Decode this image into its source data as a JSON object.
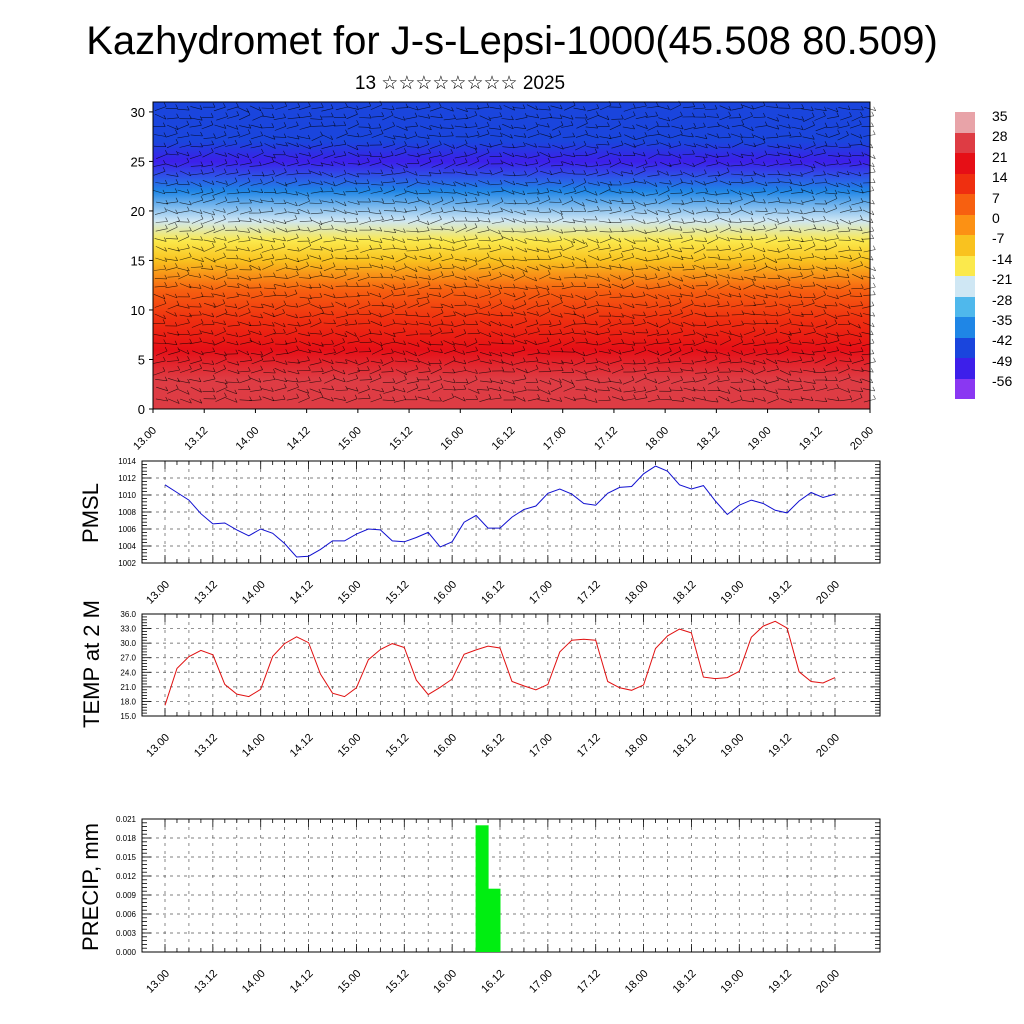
{
  "page": {
    "title": "Kazhydromet for J-s-Lepsi-1000(45.508 80.509)",
    "subtitle": "13 ☆☆☆☆☆☆☆☆ 2025"
  },
  "colorbar": {
    "labels": [
      "35",
      "28",
      "21",
      "14",
      "7",
      "0",
      "-7",
      "-14",
      "-21",
      "-28",
      "-35",
      "-42",
      "-49",
      "-56"
    ],
    "colors": [
      "#e8a3a8",
      "#de3c44",
      "#e60f16",
      "#ef2f10",
      "#f76010",
      "#fc9114",
      "#f9c21f",
      "#fbe94c",
      "#cfe7f4",
      "#4fb8ec",
      "#1f86e6",
      "#1a45dd",
      "#3d1fea",
      "#8a37f2"
    ]
  },
  "chart_data": [
    {
      "type": "heatmap",
      "name": "vertical temperature and wind cross-section",
      "x_tick_labels": [
        "13.00",
        "13.12",
        "14.00",
        "14.12",
        "15.00",
        "15.12",
        "16.00",
        "16.12",
        "17.00",
        "17.12",
        "18.00",
        "18.12",
        "19.00",
        "19.12",
        "20.00"
      ],
      "y_ticks": [
        0,
        5,
        10,
        15,
        20,
        25,
        30
      ],
      "ylim": [
        0,
        31
      ],
      "color_range": [
        -56,
        35
      ],
      "temperature_by_level": [
        {
          "level": 0,
          "value": 28
        },
        {
          "level": 3,
          "value": 24
        },
        {
          "level": 6,
          "value": 18
        },
        {
          "level": 9,
          "value": 10
        },
        {
          "level": 12,
          "value": 3
        },
        {
          "level": 15,
          "value": -7
        },
        {
          "level": 17,
          "value": -14
        },
        {
          "level": 19,
          "value": -25
        },
        {
          "level": 22,
          "value": -38
        },
        {
          "level": 25,
          "value": -52
        },
        {
          "level": 27,
          "value": -47
        },
        {
          "level": 30,
          "value": -45
        }
      ],
      "wind_barbs": true
    },
    {
      "type": "line",
      "ylabel": "PMSL",
      "x_tick_labels": [
        "13.00",
        "13.12",
        "14.00",
        "14.12",
        "15.00",
        "15.12",
        "16.00",
        "16.12",
        "17.00",
        "17.12",
        "18.00",
        "18.12",
        "19.00",
        "19.12",
        "20.00"
      ],
      "y_ticks": [
        "1002",
        "1004",
        "1006",
        "1008",
        "1010",
        "1012",
        "1014"
      ],
      "ylim": [
        1002,
        1014
      ],
      "step_hours": 3,
      "color": "#1010d0",
      "values": [
        1011.2,
        1010.3,
        1009.4,
        1007.8,
        1006.6,
        1006.7,
        1005.9,
        1005.2,
        1006.0,
        1005.5,
        1004.3,
        1002.7,
        1002.8,
        1003.6,
        1004.6,
        1004.6,
        1005.4,
        1006.0,
        1005.9,
        1004.6,
        1004.5,
        1005.0,
        1005.6,
        1003.9,
        1004.5,
        1006.8,
        1007.6,
        1006.1,
        1006.1,
        1007.4,
        1008.3,
        1008.7,
        1010.2,
        1010.7,
        1010.1,
        1009.0,
        1008.8,
        1010.2,
        1010.9,
        1011.0,
        1012.5,
        1013.4,
        1012.8,
        1011.2,
        1010.7,
        1011.1,
        1009.3,
        1007.7,
        1008.8,
        1009.4,
        1009.0,
        1008.2,
        1007.9,
        1009.3,
        1010.3,
        1009.7,
        1010.1
      ]
    },
    {
      "type": "line",
      "ylabel": "TEMP at 2 M",
      "x_tick_labels": [
        "13.00",
        "13.12",
        "14.00",
        "14.12",
        "15.00",
        "15.12",
        "16.00",
        "16.12",
        "17.00",
        "17.12",
        "18.00",
        "18.12",
        "19.00",
        "19.12",
        "20.00"
      ],
      "y_ticks": [
        "15.0",
        "18.0",
        "21.0",
        "24.0",
        "27.0",
        "30.0",
        "33.0",
        "36.0"
      ],
      "ylim": [
        15,
        36
      ],
      "step_hours": 3,
      "color": "#e01010",
      "values": [
        17.2,
        24.8,
        27.2,
        28.5,
        27.6,
        21.5,
        19.5,
        19.0,
        20.5,
        27.3,
        29.9,
        31.3,
        30.1,
        23.6,
        19.7,
        19.0,
        20.8,
        26.6,
        28.7,
        29.9,
        29.1,
        22.4,
        19.4,
        20.9,
        22.6,
        27.7,
        28.6,
        29.4,
        29.0,
        22.1,
        21.2,
        20.4,
        21.5,
        28.2,
        30.6,
        30.8,
        30.6,
        22.1,
        20.8,
        20.3,
        21.4,
        28.9,
        31.5,
        32.9,
        32.1,
        23.0,
        22.7,
        22.9,
        24.2,
        31.2,
        33.5,
        34.5,
        33.1,
        24.1,
        22.1,
        21.8,
        22.9
      ]
    },
    {
      "type": "bar",
      "ylabel": "PRECIP, mm",
      "x_tick_labels": [
        "13.00",
        "13.12",
        "14.00",
        "14.12",
        "15.00",
        "15.12",
        "16.00",
        "16.12",
        "17.00",
        "17.12",
        "18.00",
        "18.12",
        "19.00",
        "19.12",
        "20.00"
      ],
      "y_ticks": [
        "0.000",
        "0.003",
        "0.006",
        "0.009",
        "0.012",
        "0.015",
        "0.018",
        "0.021"
      ],
      "ylim": [
        0,
        0.021
      ],
      "step_hours": 3,
      "color": "#00ee11",
      "bars": [
        {
          "time": "16.06",
          "value": 0.02
        },
        {
          "time": "16.09",
          "value": 0.01
        }
      ]
    }
  ]
}
